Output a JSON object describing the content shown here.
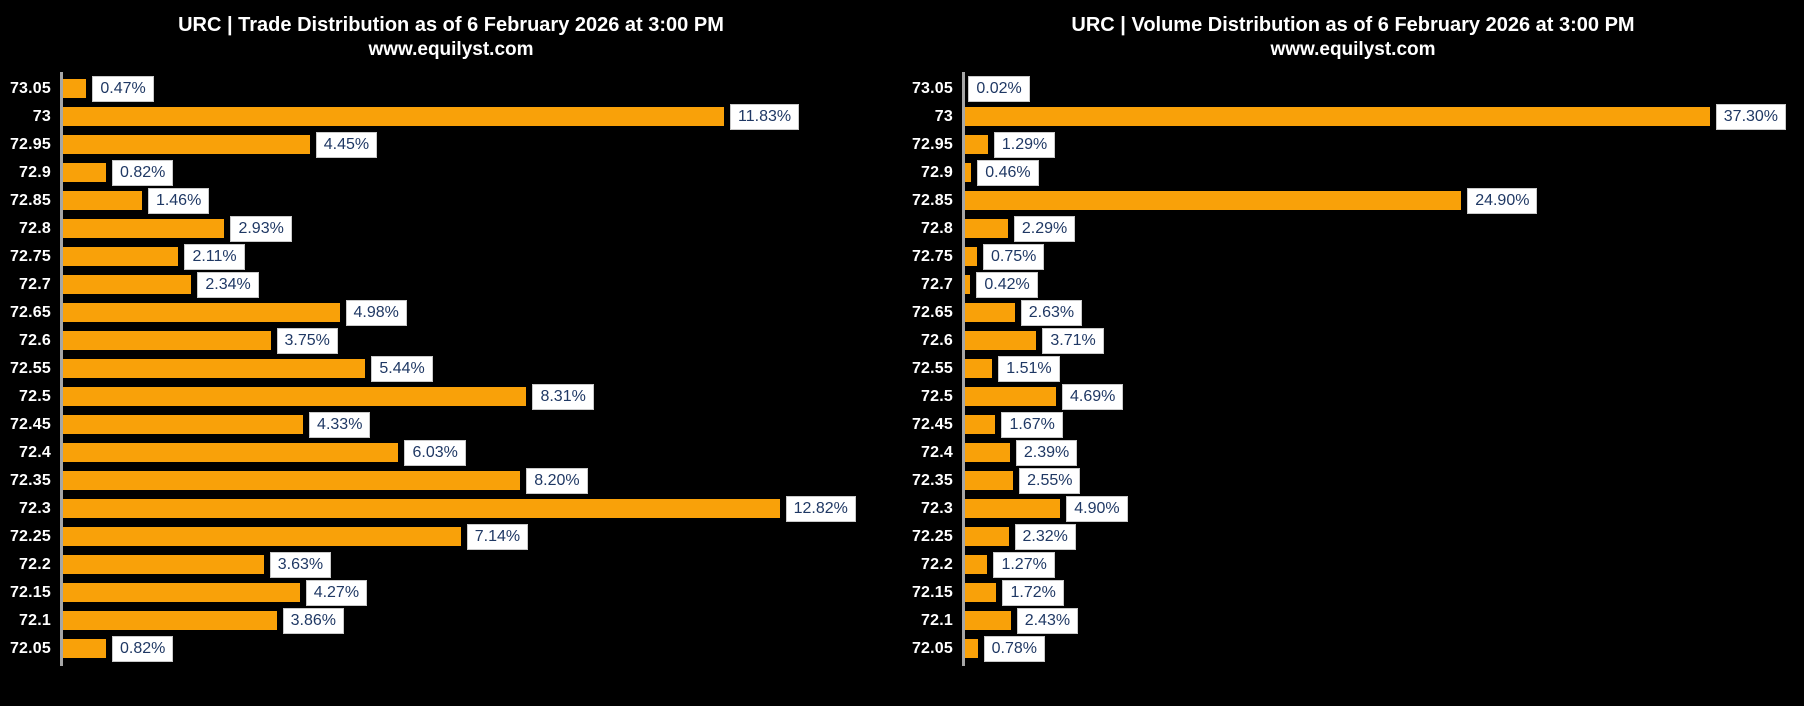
{
  "chart_data": [
    {
      "type": "bar",
      "orientation": "horizontal",
      "title": "URC | Trade Distribution as of 6 February 2026 at 3:00 PM",
      "subtitle": "www.equilyst.com",
      "xlabel": "",
      "ylabel": "",
      "categories": [
        "73.05",
        "73",
        "72.95",
        "72.9",
        "72.85",
        "72.8",
        "72.75",
        "72.7",
        "72.65",
        "72.6",
        "72.55",
        "72.5",
        "72.45",
        "72.4",
        "72.35",
        "72.3",
        "72.25",
        "72.2",
        "72.15",
        "72.1",
        "72.05"
      ],
      "values": [
        0.47,
        11.83,
        4.45,
        0.82,
        1.46,
        2.93,
        2.11,
        2.34,
        4.98,
        3.75,
        5.44,
        8.31,
        4.33,
        6.03,
        8.2,
        12.82,
        7.14,
        3.63,
        4.27,
        3.86,
        0.82
      ],
      "data_labels": [
        "0.47%",
        "11.83%",
        "4.45%",
        "0.82%",
        "1.46%",
        "2.93%",
        "2.11%",
        "2.34%",
        "4.98%",
        "3.75%",
        "5.44%",
        "8.31%",
        "4.33%",
        "6.03%",
        "8.20%",
        "12.82%",
        "7.14%",
        "3.63%",
        "4.27%",
        "3.86%",
        "0.82%"
      ],
      "xlim": [
        0,
        15
      ],
      "grid": false,
      "legend": false
    },
    {
      "type": "bar",
      "orientation": "horizontal",
      "title": "URC | Volume Distribution as of 6 February 2026 at 3:00 PM",
      "subtitle": "www.equilyst.com",
      "xlabel": "",
      "ylabel": "",
      "categories": [
        "73.05",
        "73",
        "72.95",
        "72.9",
        "72.85",
        "72.8",
        "72.75",
        "72.7",
        "72.65",
        "72.6",
        "72.55",
        "72.5",
        "72.45",
        "72.4",
        "72.35",
        "72.3",
        "72.25",
        "72.2",
        "72.15",
        "72.1",
        "72.05"
      ],
      "values": [
        0.02,
        37.3,
        1.29,
        0.46,
        24.9,
        2.29,
        0.75,
        0.42,
        2.63,
        3.71,
        1.51,
        4.69,
        1.67,
        2.39,
        2.55,
        4.9,
        2.32,
        1.27,
        1.72,
        2.43,
        0.78
      ],
      "data_labels": [
        "0.02%",
        "37.30%",
        "1.29%",
        "0.46%",
        "24.90%",
        "2.29%",
        "0.75%",
        "0.42%",
        "2.63%",
        "3.71%",
        "1.51%",
        "4.69%",
        "1.67%",
        "2.39%",
        "2.55%",
        "4.90%",
        "2.32%",
        "1.27%",
        "1.72%",
        "2.43%",
        "0.78%"
      ],
      "xlim": [
        0,
        42
      ],
      "grid": false,
      "legend": false
    }
  ],
  "style": {
    "background": "#000000",
    "bar_color": "#F9A109",
    "label_box_bg": "#FFFFFF",
    "label_box_border": "#C9C9C9",
    "label_text_color": "#1F3864",
    "tick_text_color": "#FFFFFF",
    "title_text_color": "#FFFFFF",
    "axis_line_color": "#A6A6A6"
  }
}
